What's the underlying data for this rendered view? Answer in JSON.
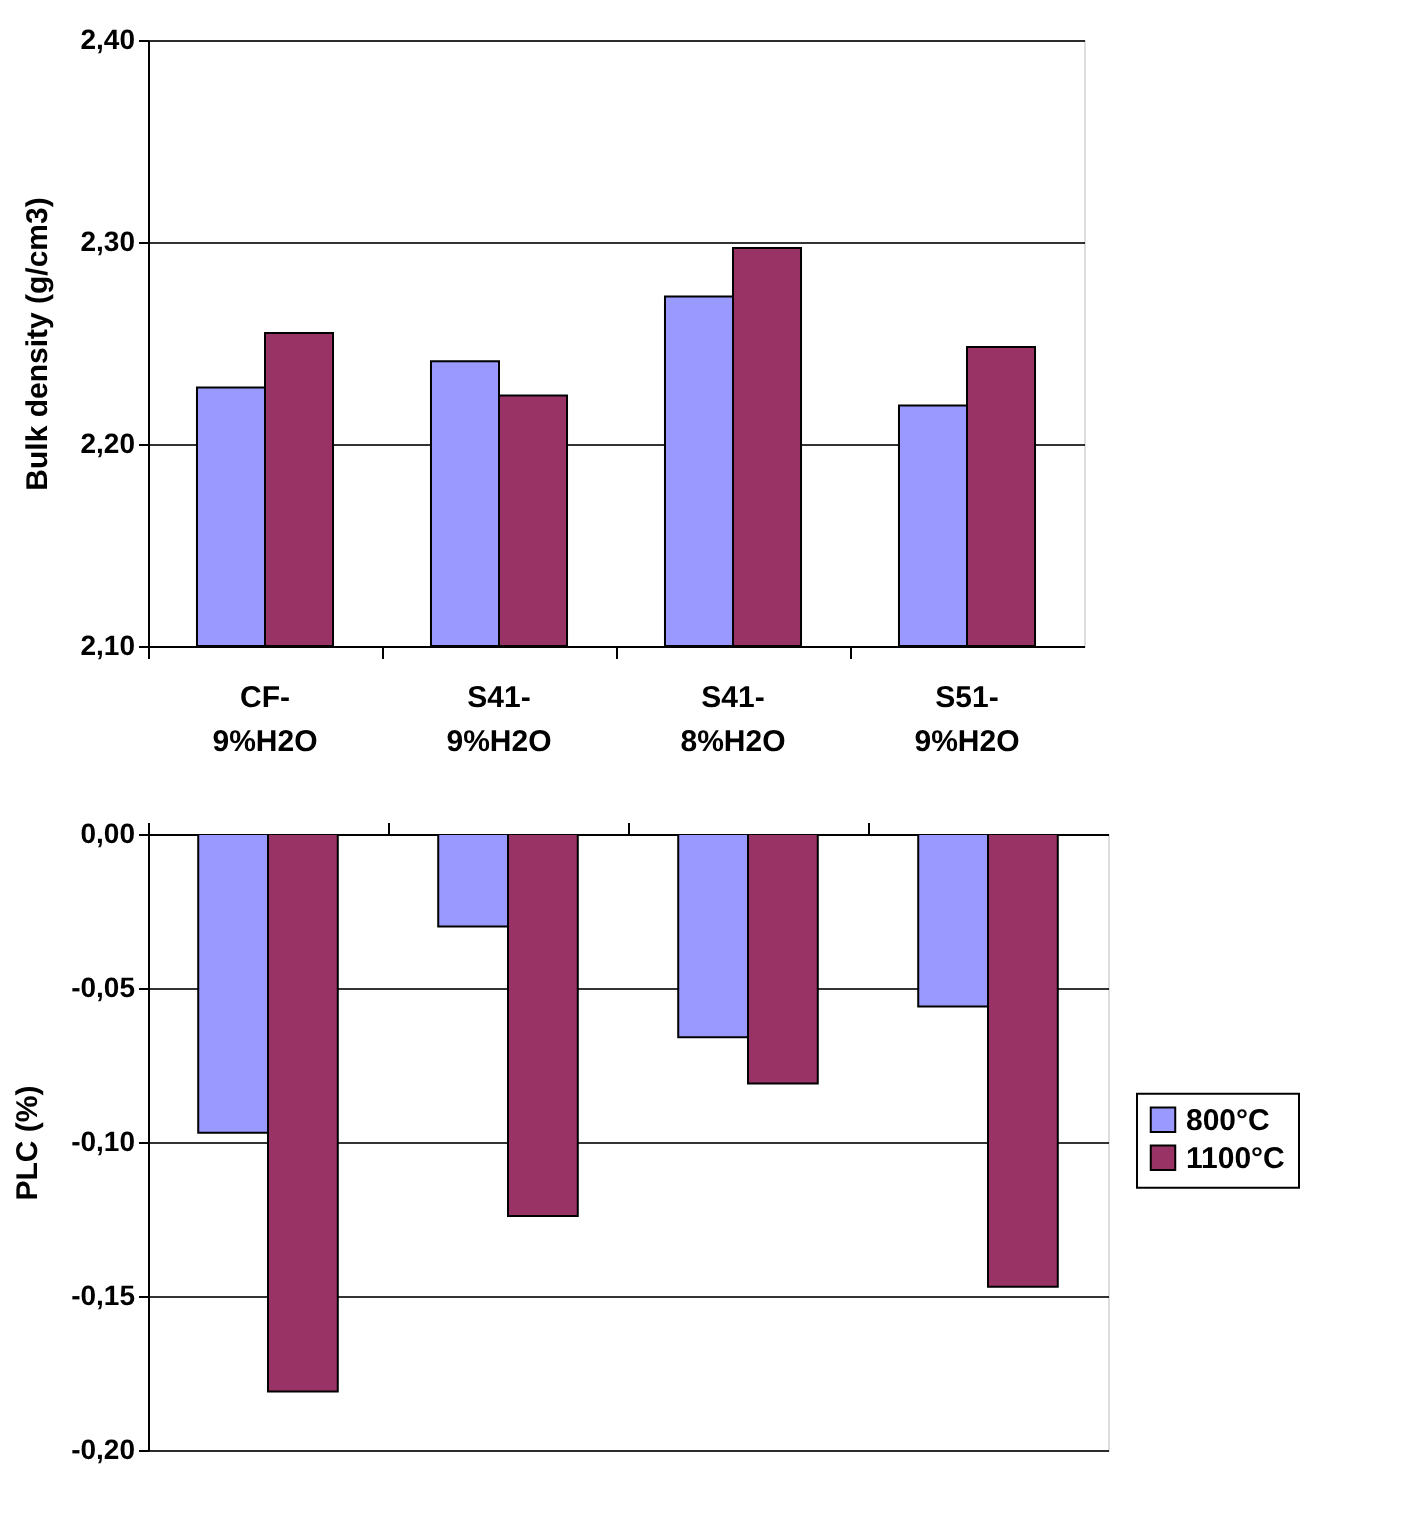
{
  "chart_data": [
    {
      "type": "bar",
      "ylabel": "Bulk density (g/cm3)",
      "categories": [
        "CF-9%H2O",
        "S41-9%H2O",
        "S41-8%H2O",
        "S51-9%H2O"
      ],
      "series": [
        {
          "color": "#9999ff",
          "values": [
            2.228,
            2.241,
            2.273,
            2.219
          ]
        },
        {
          "color": "#993366",
          "values": [
            2.255,
            2.224,
            2.297,
            2.248
          ]
        }
      ],
      "ylim": [
        2.1,
        2.4
      ],
      "yticks": [
        {
          "value": 2.1,
          "label": "2,10"
        },
        {
          "value": 2.2,
          "label": "2,20"
        },
        {
          "value": 2.3,
          "label": "2,30"
        },
        {
          "value": 2.4,
          "label": "2,40"
        }
      ],
      "grid": "y",
      "legend": false
    },
    {
      "type": "bar",
      "ylabel": "PLC (%)",
      "categories": [
        null,
        null,
        null,
        null
      ],
      "series": [
        {
          "name": "800°C",
          "color": "#9999ff",
          "values": [
            -0.097,
            -0.03,
            -0.066,
            -0.056
          ]
        },
        {
          "name": "1100°C",
          "color": "#993366",
          "values": [
            -0.181,
            -0.124,
            -0.081,
            -0.147
          ]
        }
      ],
      "ylim": [
        -0.2,
        0
      ],
      "yticks": [
        {
          "value": -0.2,
          "label": "-0,20"
        },
        {
          "value": -0.15,
          "label": "-0,15"
        },
        {
          "value": -0.1,
          "label": "-0,10"
        },
        {
          "value": -0.05,
          "label": "-0,05"
        },
        {
          "value": 0,
          "label": "0,00"
        }
      ],
      "grid": "y",
      "legend": "right",
      "tick_labels": "y"
    }
  ]
}
